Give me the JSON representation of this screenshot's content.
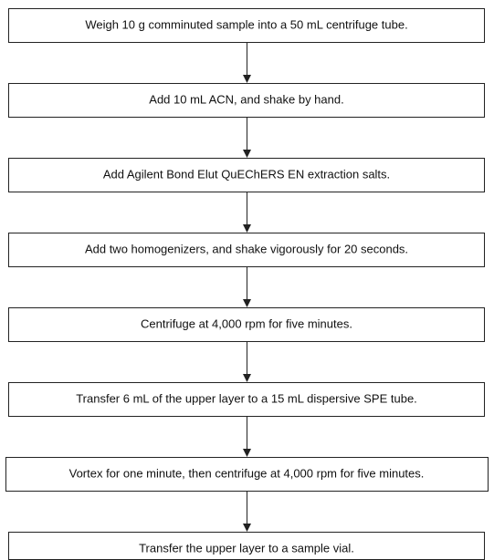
{
  "steps": [
    "Weigh 10 g comminuted sample into a 50 mL centrifuge tube.",
    "Add 10 mL ACN, and shake by hand.",
    "Add Agilent Bond Elut QuEChERS EN extraction salts.",
    "Add two homogenizers, and shake vigorously for 20 seconds.",
    "Centrifuge at 4,000 rpm for five minutes.",
    "Transfer 6 mL of the upper layer to a 15 mL dispersive SPE tube.",
    "Vortex for one minute, then centrifuge at 4,000 rpm for five minutes.",
    "Transfer the upper layer to a sample vial."
  ]
}
